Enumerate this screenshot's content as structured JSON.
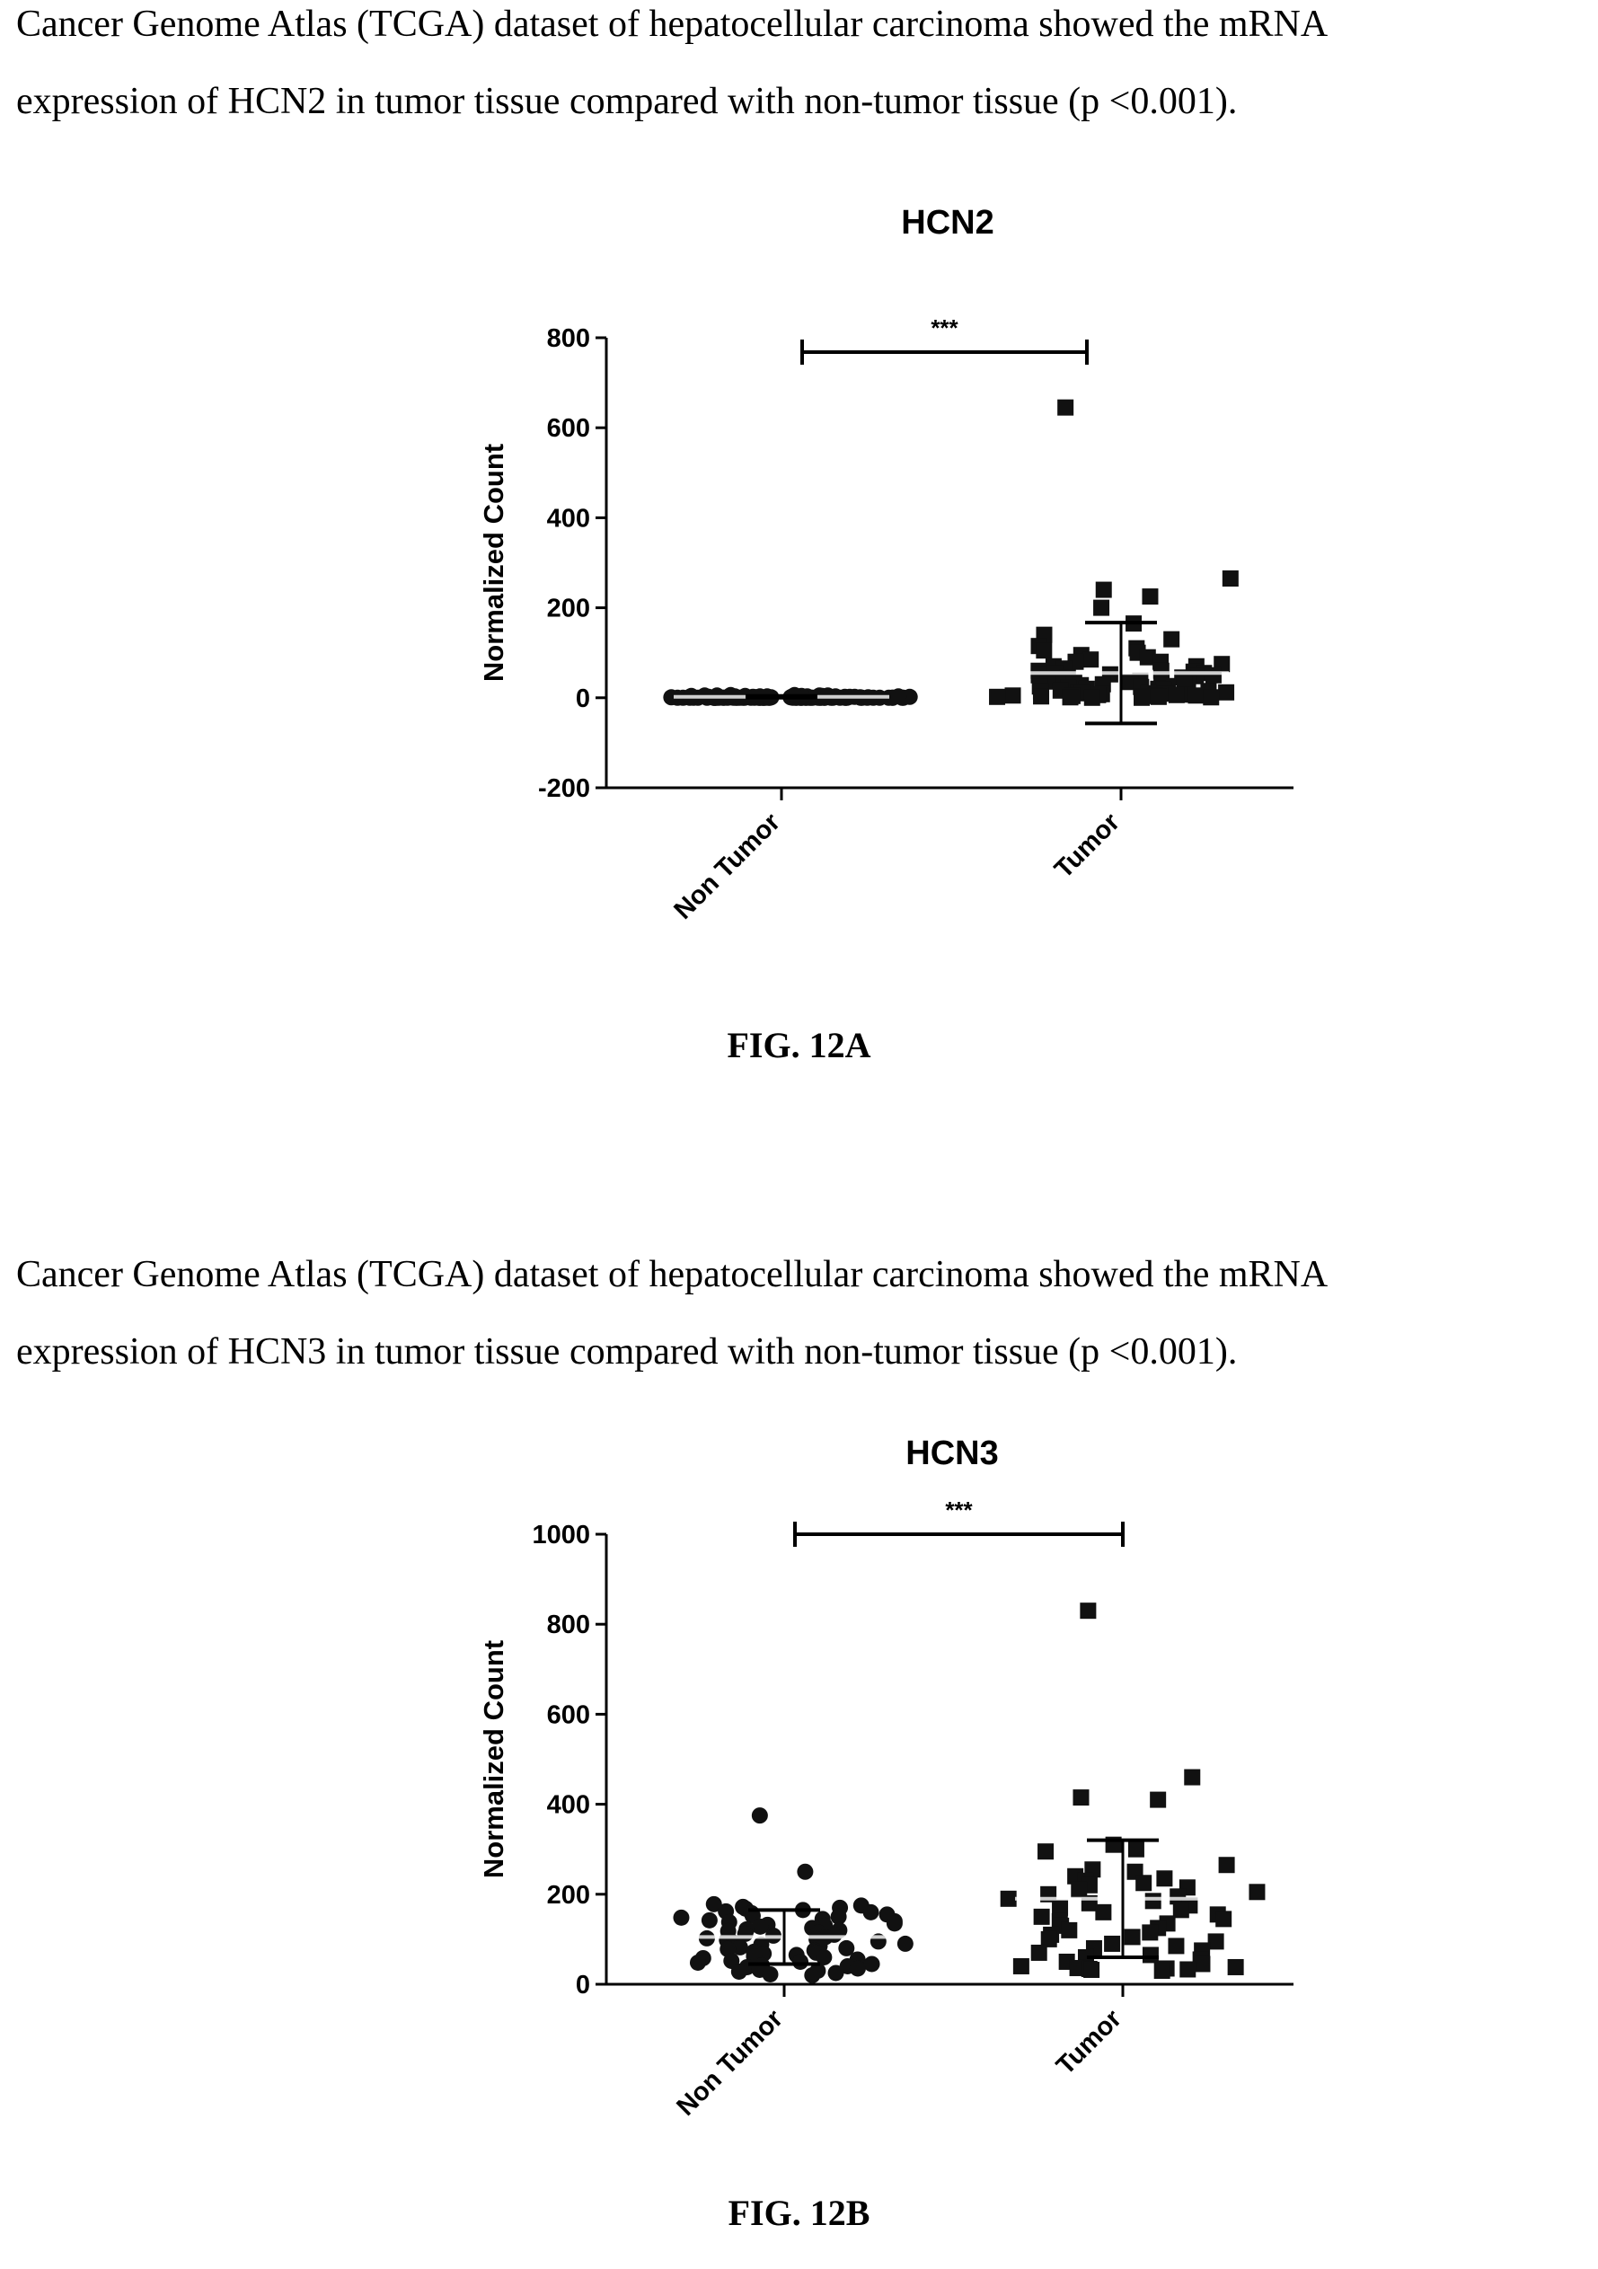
{
  "figures": [
    {
      "caption_lines": [
        "Cancer Genome Atlas (TCGA) dataset of hepatocellular carcinoma showed the mRNA",
        "expression of HCN2 in tumor tissue compared with non-tumor tissue (p <0.001)."
      ],
      "figure_label": "FIG. 12A"
    },
    {
      "caption_lines": [
        "Cancer Genome Atlas (TCGA) dataset of hepatocellular carcinoma showed the mRNA",
        "expression of HCN3 in tumor tissue compared with non-tumor tissue (p <0.001)."
      ],
      "figure_label": "FIG. 12B"
    }
  ],
  "chart_data": [
    {
      "type": "scatter",
      "title": "HCN2",
      "ylabel": "Normalized Count",
      "xlabel": "",
      "categories": [
        "Non Tumor",
        "Tumor"
      ],
      "ylim": [
        -200,
        800
      ],
      "yticks": [
        -200,
        0,
        200,
        400,
        600,
        800
      ],
      "tick_labels": [
        "-200",
        "0",
        "200",
        "400",
        "600",
        "800"
      ],
      "significance": "***",
      "series": [
        {
          "category": "Non Tumor",
          "marker": "circle",
          "values": [
            0,
            0,
            0,
            0,
            0,
            0,
            0,
            0,
            0,
            0,
            0,
            0,
            0,
            0,
            0,
            0,
            0,
            0,
            0,
            0,
            0,
            0,
            0,
            0,
            0,
            0,
            0,
            0,
            0,
            0,
            0,
            0,
            0,
            0,
            0,
            0,
            0,
            0,
            0,
            0,
            0,
            0,
            0,
            0,
            0,
            0,
            0,
            0,
            0,
            0,
            0,
            0,
            0,
            0,
            0,
            0,
            0,
            0,
            0,
            0,
            0,
            0,
            0,
            0,
            1,
            1,
            1,
            1,
            1,
            1,
            1,
            1,
            1,
            1,
            1,
            1,
            1,
            1,
            1,
            1,
            2,
            2,
            2,
            2,
            2,
            2,
            2,
            2,
            2,
            2,
            2,
            2,
            3,
            3,
            3,
            3,
            3,
            3,
            3,
            3,
            4,
            4,
            4,
            4,
            5,
            5,
            5,
            5,
            6,
            6
          ],
          "mean": 2,
          "sd": 2
        },
        {
          "category": "Tumor",
          "marker": "square",
          "values": [
            645,
            265,
            240,
            225,
            200,
            165,
            140,
            130,
            115,
            110,
            105,
            100,
            95,
            90,
            85,
            80,
            80,
            75,
            70,
            70,
            65,
            60,
            60,
            58,
            55,
            55,
            52,
            50,
            50,
            48,
            45,
            45,
            42,
            40,
            40,
            38,
            36,
            35,
            34,
            32,
            30,
            30,
            28,
            26,
            25,
            24,
            22,
            20,
            20,
            18,
            16,
            15,
            14,
            12,
            11,
            10,
            10,
            9,
            8,
            7,
            6,
            6,
            5,
            5,
            4,
            4,
            3,
            3,
            2,
            2,
            1,
            1,
            0,
            0
          ],
          "mean": 55,
          "sd": 112
        }
      ]
    },
    {
      "type": "scatter",
      "title": "HCN3",
      "ylabel": "Normalized Count",
      "xlabel": "",
      "categories": [
        "Non Tumor",
        "Tumor"
      ],
      "ylim": [
        0,
        1000
      ],
      "yticks": [
        0,
        200,
        400,
        600,
        800,
        1000
      ],
      "tick_labels": [
        "0",
        "200",
        "400",
        "600",
        "800",
        "1000"
      ],
      "significance": "***",
      "series": [
        {
          "category": "Non Tumor",
          "marker": "circle",
          "values": [
            375,
            250,
            178,
            175,
            172,
            170,
            168,
            165,
            162,
            160,
            158,
            155,
            152,
            150,
            148,
            145,
            142,
            140,
            138,
            135,
            132,
            130,
            128,
            125,
            122,
            120,
            118,
            115,
            112,
            110,
            108,
            105,
            102,
            100,
            98,
            95,
            92,
            90,
            88,
            85,
            82,
            80,
            78,
            75,
            72,
            70,
            68,
            65,
            62,
            60,
            58,
            55,
            52,
            50,
            48,
            45,
            42,
            40,
            38,
            35,
            32,
            30,
            28,
            25,
            22,
            20
          ],
          "mean": 105,
          "sd": 60
        },
        {
          "category": "Tumor",
          "marker": "square",
          "values": [
            830,
            460,
            415,
            410,
            310,
            300,
            295,
            265,
            255,
            250,
            240,
            235,
            230,
            225,
            220,
            215,
            210,
            205,
            200,
            195,
            190,
            185,
            180,
            175,
            170,
            165,
            160,
            155,
            150,
            145,
            140,
            135,
            130,
            125,
            120,
            115,
            110,
            105,
            100,
            95,
            90,
            85,
            80,
            75,
            70,
            65,
            60,
            55,
            50,
            45,
            40,
            38,
            36,
            35,
            34,
            33,
            32,
            30
          ],
          "mean": 190,
          "sd": 130
        }
      ]
    }
  ]
}
